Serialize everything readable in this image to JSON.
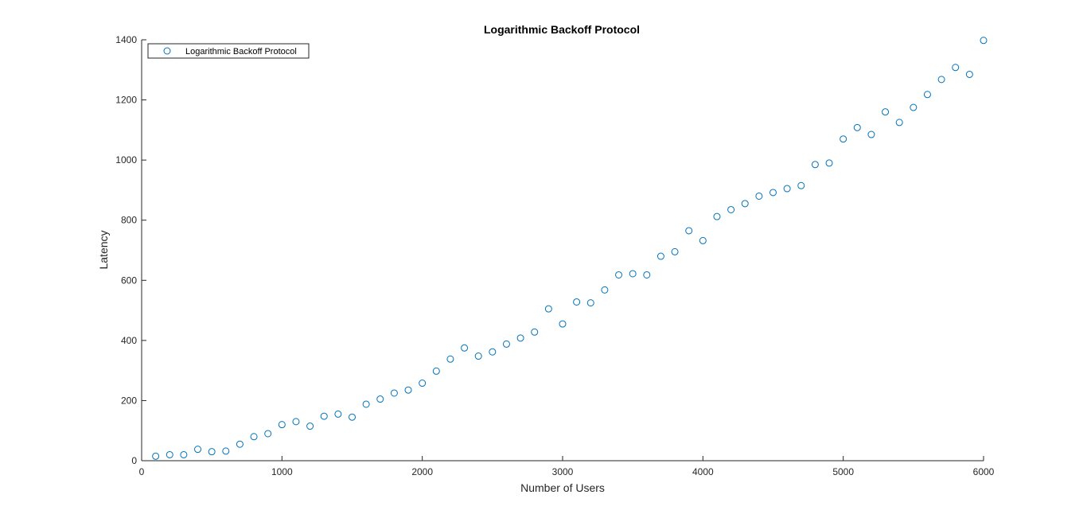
{
  "chart_data": {
    "type": "scatter",
    "title": "Logarithmic Backoff Protocol",
    "xlabel": "Number of Users",
    "ylabel": "Latency",
    "xlim": [
      0,
      6000
    ],
    "ylim": [
      0,
      1400
    ],
    "xticks": [
      0,
      1000,
      2000,
      3000,
      4000,
      5000,
      6000
    ],
    "yticks": [
      0,
      200,
      400,
      600,
      800,
      1000,
      1200,
      1400
    ],
    "grid": false,
    "legend_position": "top-left",
    "marker": "open-circle",
    "series": [
      {
        "name": "Logarithmic Backoff Protocol",
        "color": "#0072BD",
        "x": [
          100,
          200,
          300,
          400,
          500,
          600,
          700,
          800,
          900,
          1000,
          1100,
          1200,
          1300,
          1400,
          1500,
          1600,
          1700,
          1800,
          1900,
          2000,
          2100,
          2200,
          2300,
          2400,
          2500,
          2600,
          2700,
          2800,
          2900,
          3000,
          3100,
          3200,
          3300,
          3400,
          3500,
          3600,
          3700,
          3800,
          3900,
          4000,
          4100,
          4200,
          4300,
          4400,
          4500,
          4600,
          4700,
          4800,
          4900,
          5000,
          5100,
          5200,
          5300,
          5400,
          5500,
          5600,
          5700,
          5800,
          5900,
          6000
        ],
        "y": [
          15,
          20,
          20,
          38,
          30,
          32,
          55,
          80,
          90,
          120,
          130,
          115,
          148,
          155,
          145,
          188,
          205,
          225,
          235,
          258,
          298,
          338,
          375,
          348,
          362,
          388,
          408,
          428,
          505,
          455,
          528,
          525,
          568,
          618,
          622,
          618,
          680,
          695,
          765,
          732,
          812,
          835,
          855,
          880,
          892,
          905,
          915,
          985,
          990,
          1070,
          1108,
          1085,
          1160,
          1125,
          1175,
          1218,
          1268,
          1308,
          1285,
          1398
        ]
      }
    ]
  }
}
